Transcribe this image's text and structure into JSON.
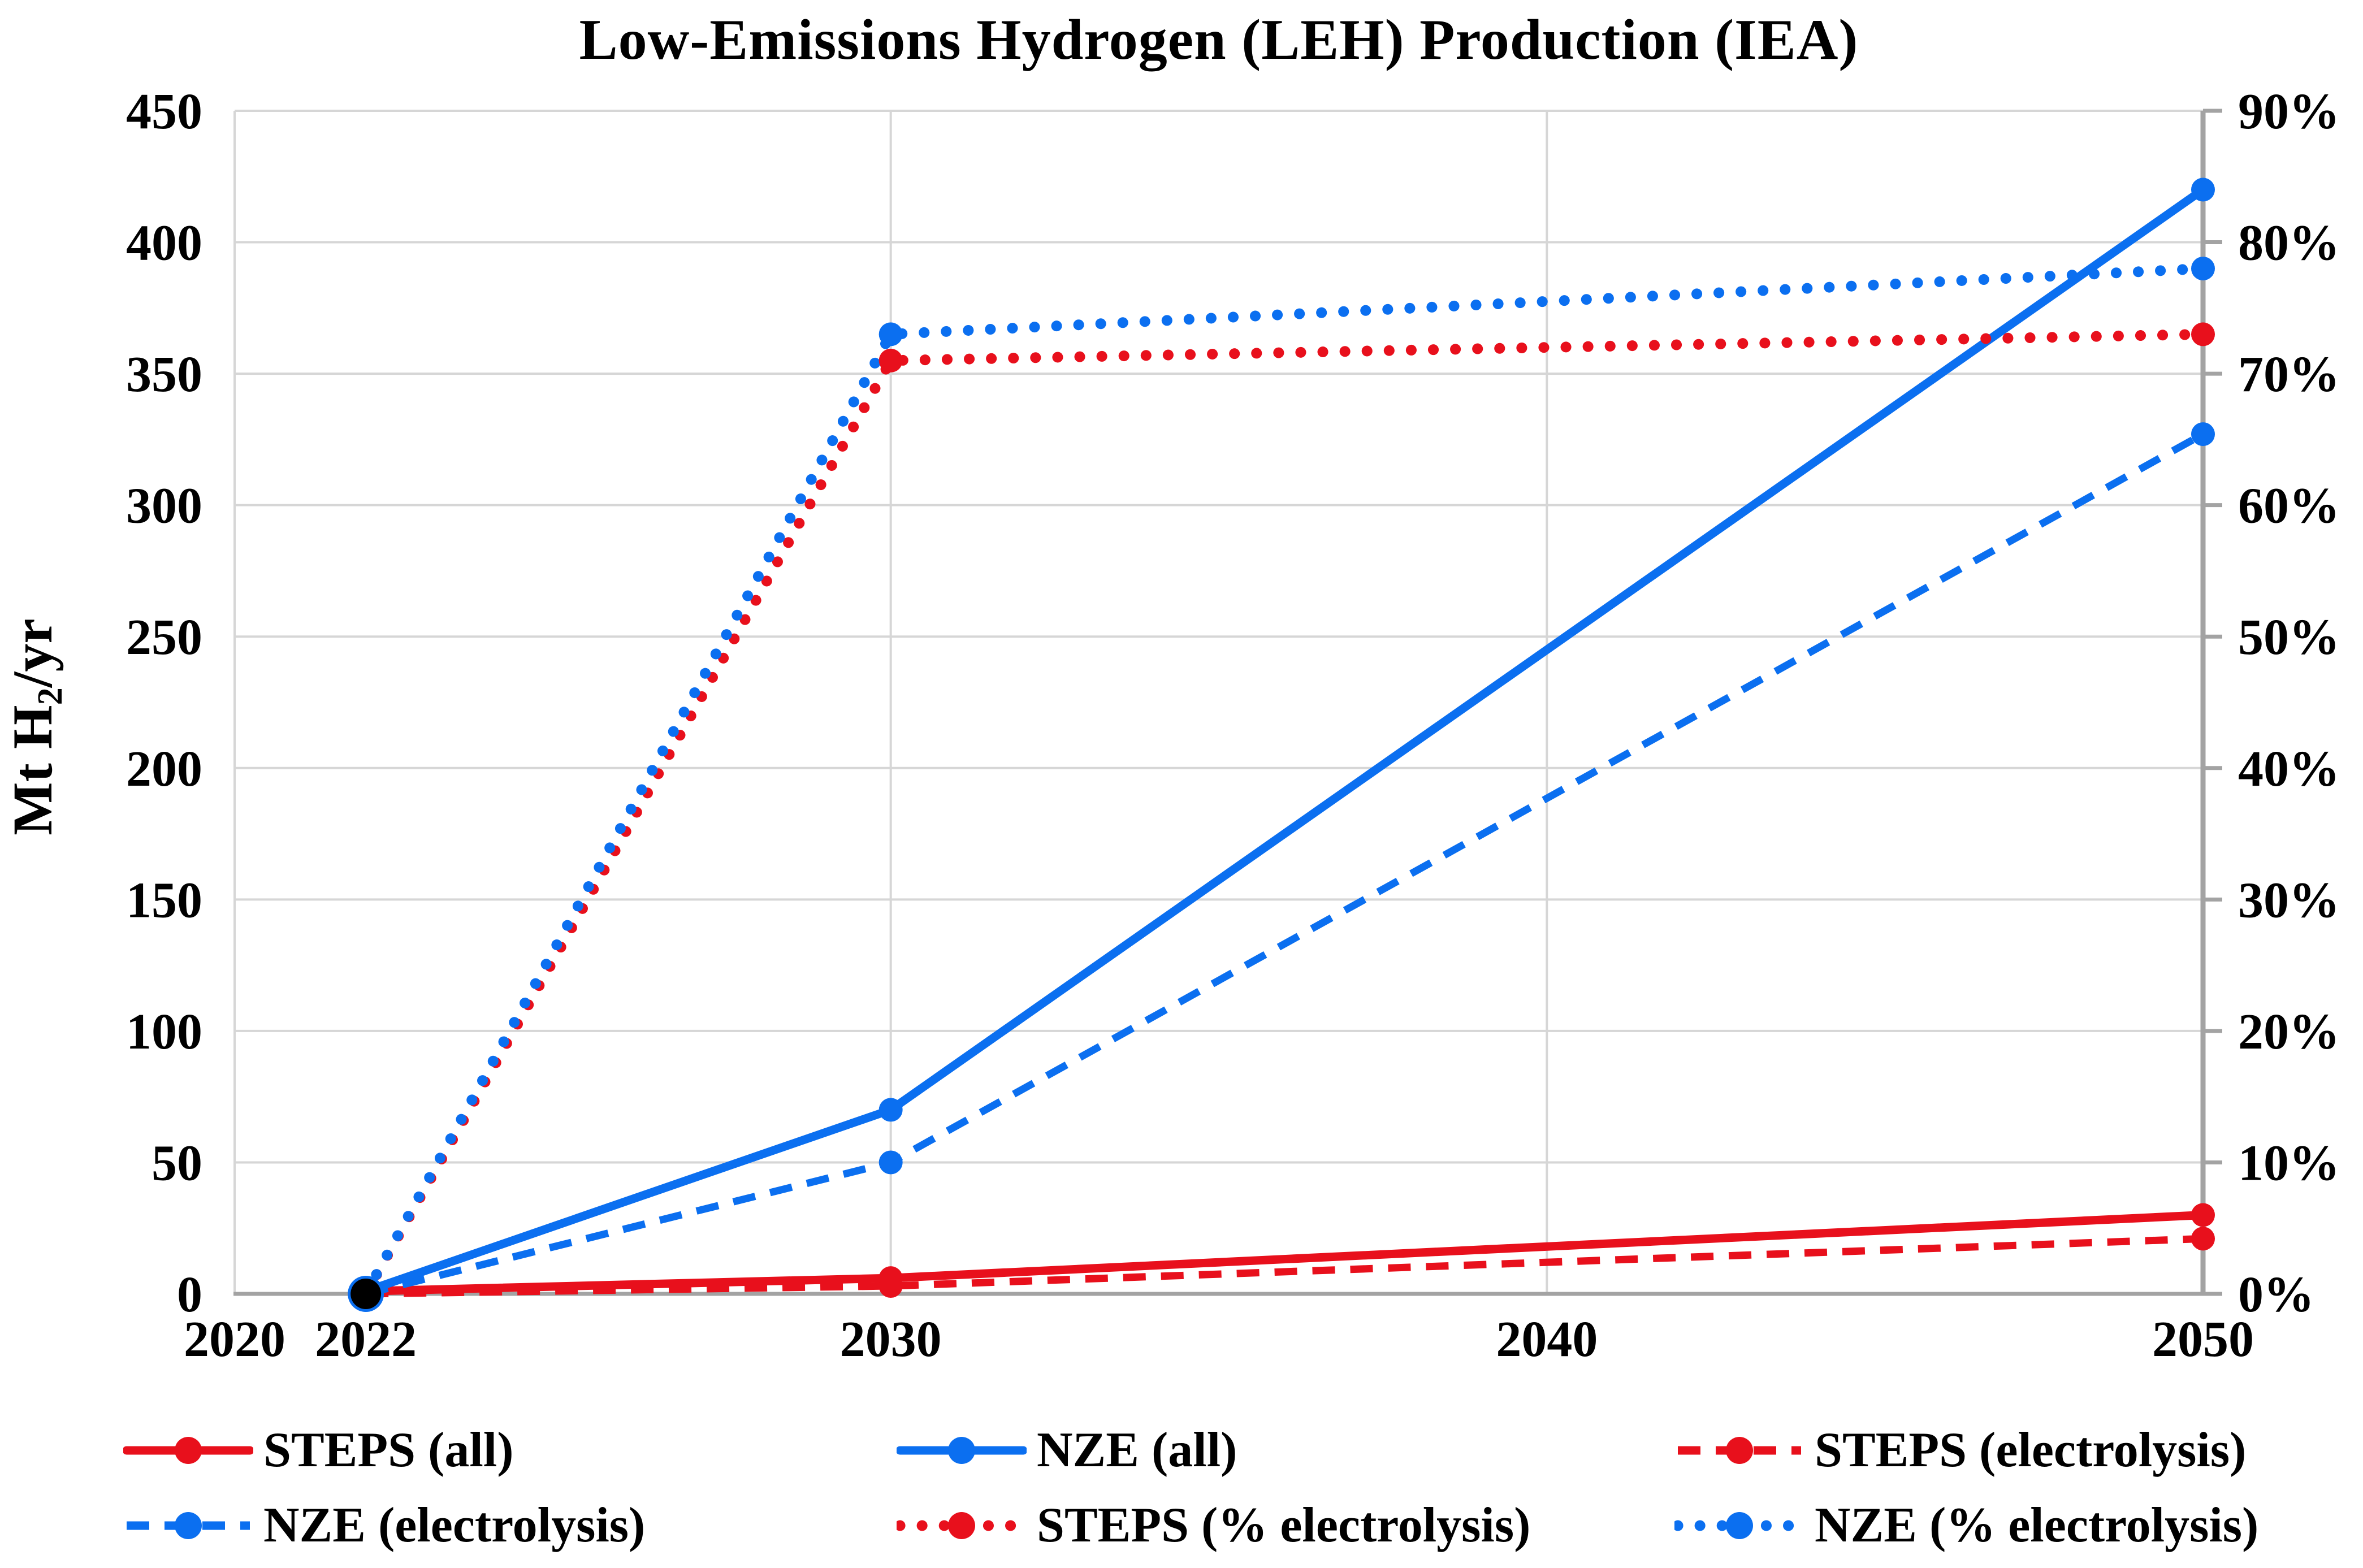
{
  "chart_data": {
    "type": "line",
    "title": "Low-Emissions Hydrogen (LEH) Production (IEA)",
    "xlabel": "",
    "ylabel": "Mt H₂/yr",
    "ylabel_parts": {
      "prefix": "Mt H",
      "sub": "2",
      "suffix": "/yr"
    },
    "x": [
      2022,
      2030,
      2050
    ],
    "x_axis": {
      "min": 2020,
      "max": 2050,
      "tick_years": [
        2020,
        2022,
        2030,
        2040,
        2050
      ],
      "tick_labels": [
        "2020",
        "2022",
        "2030",
        "2040",
        "2050"
      ],
      "gridline_years": [
        2030,
        2040
      ]
    },
    "y_axis_left": {
      "min": 0,
      "max": 450,
      "step": 50
    },
    "y_axis_right": {
      "min": 0,
      "max": 90,
      "step": 10,
      "suffix": "%"
    },
    "grid": true,
    "legend_position": "bottom",
    "series": [
      {
        "name": "STEPS (all)",
        "axis": "left",
        "color_key": "red",
        "line_style": "solid",
        "values": [
          1,
          6,
          30
        ]
      },
      {
        "name": "NZE (all)",
        "axis": "left",
        "color_key": "blue",
        "line_style": "solid",
        "values": [
          1,
          70,
          420
        ]
      },
      {
        "name": "STEPS (electrolysis)",
        "axis": "left",
        "color_key": "red",
        "line_style": "dashed",
        "values": [
          0,
          3,
          21
        ]
      },
      {
        "name": "NZE (electrolysis)",
        "axis": "left",
        "color_key": "blue",
        "line_style": "dashed",
        "values": [
          0,
          50,
          327
        ]
      },
      {
        "name": "STEPS (% electrolysis)",
        "axis": "right",
        "color_key": "red",
        "line_style": "dotted",
        "values": [
          0,
          71,
          73
        ]
      },
      {
        "name": "NZE (% electrolysis)",
        "axis": "right",
        "color_key": "blue",
        "line_style": "dotted",
        "values": [
          0,
          73,
          78
        ]
      }
    ],
    "start_marker": {
      "year": 2022,
      "value": 0,
      "color": "#000000"
    }
  },
  "legend": {
    "rows": [
      [
        "STEPS (all)",
        "NZE (all)",
        "STEPS (electrolysis)"
      ],
      [
        "NZE (electrolysis)",
        "STEPS (% electrolysis)",
        "NZE (% electrolysis)"
      ]
    ]
  },
  "colors": {
    "red": "#e8101c",
    "blue": "#0b6ff0",
    "black": "#000000",
    "grid": "#d6d6d6",
    "axis": "#a3a3a3",
    "text": "#000000",
    "background": "#ffffff"
  }
}
